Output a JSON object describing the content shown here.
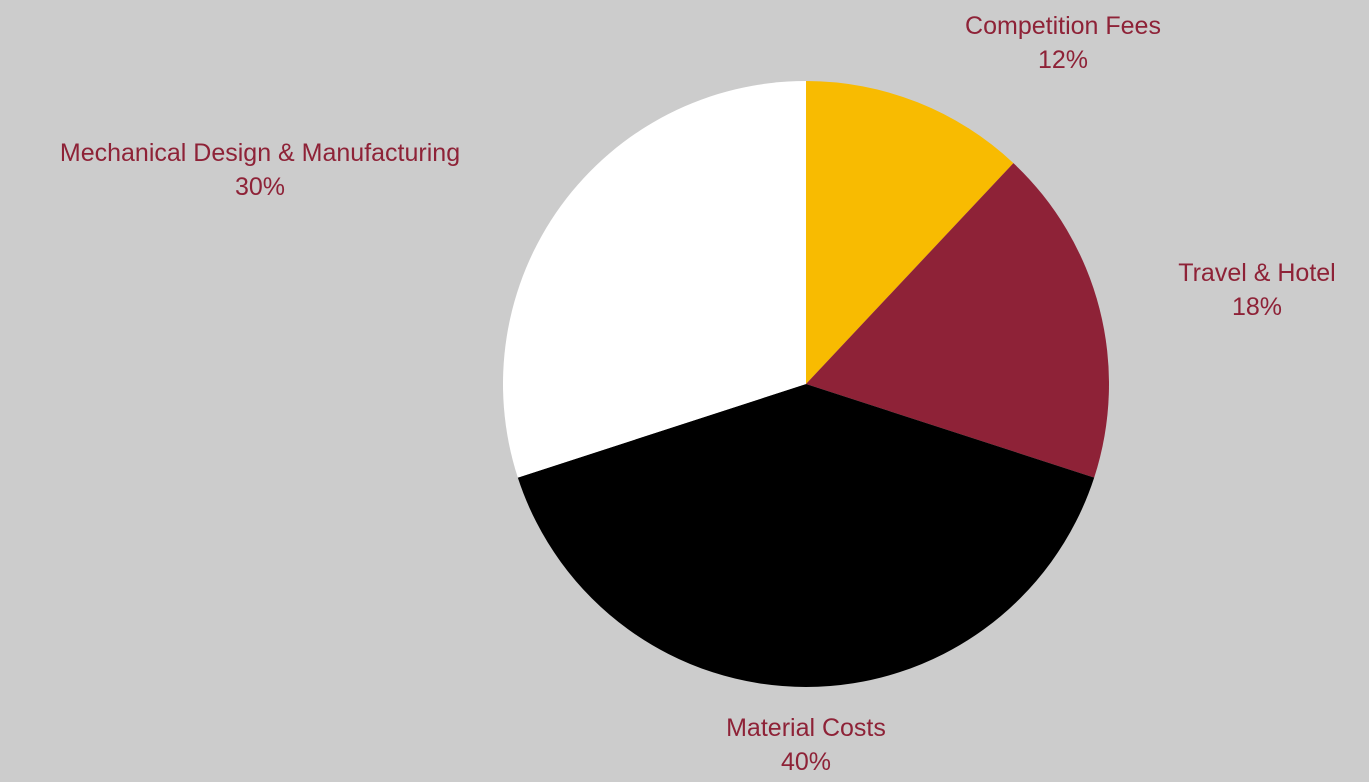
{
  "chart_data": {
    "type": "pie",
    "title": "",
    "start": "top",
    "direction": "clockwise",
    "slices": [
      {
        "label": "Competition Fees",
        "value": 12,
        "display": "12%",
        "color": "#f8bb01"
      },
      {
        "label": "Travel & Hotel",
        "value": 18,
        "display": "18%",
        "color": "#8e2237"
      },
      {
        "label": "Material Costs",
        "value": 40,
        "display": "40%",
        "color": "#000000"
      },
      {
        "label": "Mechanical Design & Manufacturing",
        "value": 30,
        "display": "30%",
        "color": "#ffffff"
      }
    ]
  },
  "colors": {
    "background": "#cccccc",
    "label_text": "#8e2237"
  }
}
